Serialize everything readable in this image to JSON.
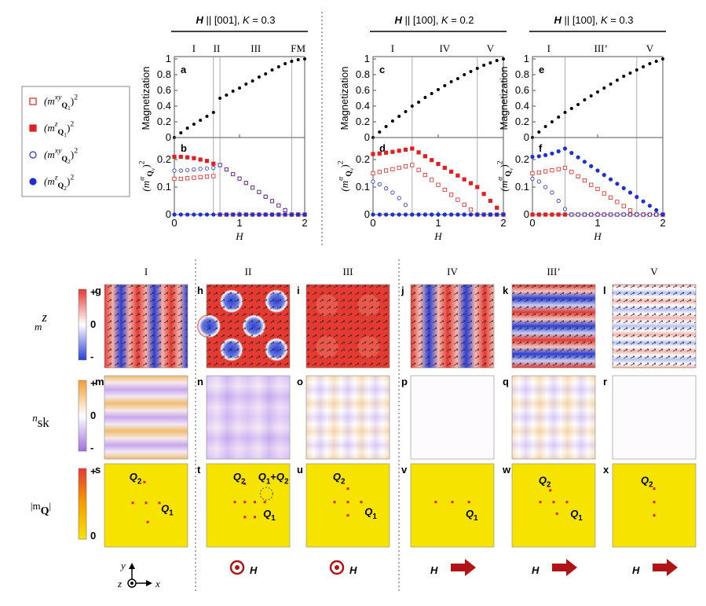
{
  "chart_data": [
    {
      "type": "scatter",
      "label": "a",
      "title": [
        {
          "t": "H",
          "i": true,
          "b": true
        },
        {
          "t": " || [001], "
        },
        {
          "t": "K",
          "i": true
        },
        {
          "t": " = 0.3"
        }
      ],
      "phases": [
        "I",
        "II",
        "III",
        "FM"
      ],
      "phase_bounds": [
        0.6,
        0.7,
        1.8
      ],
      "ylabel": [
        {
          "t": "Magnetization"
        }
      ],
      "x": [
        0,
        0.1,
        0.2,
        0.3,
        0.4,
        0.5,
        0.6,
        0.7,
        0.8,
        0.9,
        1,
        1.1,
        1.2,
        1.3,
        1.4,
        1.5,
        1.6,
        1.7,
        1.8,
        1.9,
        2
      ],
      "series": [
        {
          "color": "#000000",
          "marker": "circle",
          "values": [
            0,
            0.06,
            0.12,
            0.17,
            0.22,
            0.27,
            0.32,
            0.5,
            0.54,
            0.59,
            0.63,
            0.68,
            0.72,
            0.77,
            0.81,
            0.86,
            0.9,
            0.94,
            0.97,
            0.99,
            1
          ]
        }
      ],
      "xlim": [
        0,
        2
      ],
      "xticks": [
        0,
        1,
        2
      ],
      "ylim": [
        0,
        1
      ],
      "yticks": [
        0,
        0.2,
        0.4,
        0.6,
        0.8,
        1
      ]
    },
    {
      "type": "scatter",
      "label": "b",
      "phase_bounds": [
        0.6,
        0.7,
        1.8
      ],
      "ylabel": [
        {
          "t": "(m",
          "i": true
        },
        {
          "t": "α",
          "s": "sup",
          "i": true
        },
        {
          "t": "Q",
          "s": "sub",
          "b": true
        },
        {
          "t": "ν",
          "s": "sub2",
          "i": true
        },
        {
          "t": ")"
        },
        {
          "t": "2",
          "s": "sup"
        }
      ],
      "xlabel": [
        {
          "t": "H",
          "i": true
        }
      ],
      "x": [
        0,
        0.1,
        0.2,
        0.3,
        0.4,
        0.5,
        0.6,
        0.7,
        0.8,
        0.9,
        1,
        1.1,
        1.2,
        1.3,
        1.4,
        1.5,
        1.6,
        1.7,
        1.8,
        1.9,
        2
      ],
      "series": [
        {
          "color": "#e02020",
          "marker": "open-square",
          "values": [
            0.13,
            0.13,
            0.132,
            0.134,
            0.136,
            0.138,
            0.14,
            0.18,
            0.164,
            0.147,
            0.131,
            0.115,
            0.098,
            0.082,
            0.065,
            0.049,
            0.033,
            0.016,
            0,
            0,
            0
          ]
        },
        {
          "color": "#e02020",
          "marker": "square",
          "values": [
            0.21,
            0.21,
            0.208,
            0.205,
            0.2,
            0.195,
            0.185,
            0,
            0,
            0,
            0,
            0,
            0,
            0,
            0,
            0,
            0,
            0,
            0,
            0,
            0
          ]
        },
        {
          "color": "#2030d0",
          "marker": "open-circle",
          "values": [
            0.16,
            0.16,
            0.162,
            0.164,
            0.166,
            0.168,
            0.17,
            0.18,
            0.164,
            0.147,
            0.131,
            0.115,
            0.098,
            0.082,
            0.065,
            0.049,
            0.033,
            0.016,
            0,
            0,
            0
          ]
        },
        {
          "color": "#2030d0",
          "marker": "circle",
          "values": [
            0,
            0,
            0,
            0,
            0,
            0,
            0,
            0,
            0,
            0,
            0,
            0,
            0,
            0,
            0,
            0,
            0,
            0,
            0,
            0,
            0
          ]
        }
      ],
      "xlim": [
        0,
        2
      ],
      "xticks": [
        0,
        1,
        2
      ],
      "ylim": [
        0,
        0.28
      ],
      "yticks": [
        0,
        0.1,
        0.2
      ]
    },
    {
      "type": "scatter",
      "label": "c",
      "title": [
        {
          "t": "H",
          "i": true,
          "b": true
        },
        {
          "t": " || [100], "
        },
        {
          "t": "K",
          "i": true
        },
        {
          "t": " = 0.2"
        }
      ],
      "phases": [
        "I",
        "IV",
        "V"
      ],
      "phase_bounds": [
        0.6,
        1.6
      ],
      "ylabel": [
        {
          "t": "Magnetization"
        }
      ],
      "x": [
        0,
        0.1,
        0.2,
        0.3,
        0.4,
        0.5,
        0.6,
        0.7,
        0.8,
        0.9,
        1,
        1.1,
        1.2,
        1.3,
        1.4,
        1.5,
        1.6,
        1.7,
        1.8,
        1.9,
        2
      ],
      "series": [
        {
          "color": "#000000",
          "marker": "circle",
          "values": [
            0,
            0.07,
            0.14,
            0.21,
            0.27,
            0.33,
            0.4,
            0.45,
            0.51,
            0.56,
            0.61,
            0.66,
            0.71,
            0.75,
            0.8,
            0.84,
            0.88,
            0.92,
            0.95,
            0.98,
            1
          ]
        }
      ],
      "xlim": [
        0,
        2
      ],
      "xticks": [
        0,
        1,
        2
      ],
      "ylim": [
        0,
        1
      ],
      "yticks": [
        0,
        0.2,
        0.4,
        0.6,
        0.8,
        1
      ]
    },
    {
      "type": "scatter",
      "label": "d",
      "phase_bounds": [
        0.6,
        1.6
      ],
      "ylabel": [
        {
          "t": "(m",
          "i": true
        },
        {
          "t": "α",
          "s": "sup",
          "i": true
        },
        {
          "t": "Q",
          "s": "sub",
          "b": true
        },
        {
          "t": "ν",
          "s": "sub2",
          "i": true
        },
        {
          "t": ")"
        },
        {
          "t": "2",
          "s": "sup"
        }
      ],
      "xlabel": [
        {
          "t": "H",
          "i": true
        }
      ],
      "x": [
        0,
        0.1,
        0.2,
        0.3,
        0.4,
        0.5,
        0.6,
        0.7,
        0.8,
        0.9,
        1,
        1.1,
        1.2,
        1.3,
        1.4,
        1.5,
        1.6,
        1.7,
        1.8,
        1.9,
        2
      ],
      "series": [
        {
          "color": "#e02020",
          "marker": "open-square",
          "values": [
            0.15,
            0.155,
            0.16,
            0.165,
            0.17,
            0.175,
            0.18,
            0.162,
            0.144,
            0.126,
            0.108,
            0.09,
            0.072,
            0.054,
            0.036,
            0.018,
            0,
            0,
            0,
            0,
            0
          ]
        },
        {
          "color": "#e02020",
          "marker": "square",
          "values": [
            0.22,
            0.222,
            0.225,
            0.228,
            0.232,
            0.236,
            0.24,
            0.226,
            0.212,
            0.198,
            0.184,
            0.17,
            0.156,
            0.142,
            0.128,
            0.114,
            0.1,
            0.075,
            0.05,
            0.025,
            0
          ]
        },
        {
          "color": "#2030d0",
          "marker": "open-circle",
          "values": [
            0.12,
            0.11,
            0.095,
            0.08,
            0.06,
            0.035,
            0,
            0,
            0,
            0,
            0,
            0,
            0,
            0,
            0,
            0,
            0,
            0,
            0,
            0,
            0
          ]
        },
        {
          "color": "#2030d0",
          "marker": "circle",
          "values": [
            0,
            0,
            0,
            0,
            0,
            0,
            0,
            0,
            0,
            0,
            0,
            0,
            0,
            0,
            0,
            0,
            0,
            0,
            0,
            0,
            0
          ]
        }
      ],
      "xlim": [
        0,
        2
      ],
      "xticks": [
        0,
        1,
        2
      ],
      "ylim": [
        0,
        0.28
      ],
      "yticks": [
        0,
        0.1,
        0.2
      ]
    },
    {
      "type": "scatter",
      "label": "e",
      "title": [
        {
          "t": "H",
          "i": true,
          "b": true
        },
        {
          "t": " || [100], "
        },
        {
          "t": "K",
          "i": true
        },
        {
          "t": " = 0.3"
        }
      ],
      "phases": [
        "I",
        "III’",
        "V"
      ],
      "phase_bounds": [
        0.5,
        1.6
      ],
      "ylabel": [
        {
          "t": "Magnetization"
        }
      ],
      "x": [
        0,
        0.1,
        0.2,
        0.3,
        0.4,
        0.5,
        0.6,
        0.7,
        0.8,
        0.9,
        1,
        1.1,
        1.2,
        1.3,
        1.4,
        1.5,
        1.6,
        1.7,
        1.8,
        1.9,
        2
      ],
      "series": [
        {
          "color": "#000000",
          "marker": "circle",
          "values": [
            0,
            0.07,
            0.14,
            0.2,
            0.26,
            0.32,
            0.37,
            0.42,
            0.48,
            0.53,
            0.58,
            0.63,
            0.68,
            0.73,
            0.78,
            0.82,
            0.86,
            0.9,
            0.94,
            0.97,
            1
          ]
        }
      ],
      "xlim": [
        0,
        2
      ],
      "xticks": [
        0,
        1,
        2
      ],
      "ylim": [
        0,
        1
      ],
      "yticks": [
        0,
        0.2,
        0.4,
        0.6,
        0.8,
        1
      ]
    },
    {
      "type": "scatter",
      "label": "f",
      "phase_bounds": [
        0.5,
        1.6
      ],
      "ylabel": [
        {
          "t": "(m",
          "i": true
        },
        {
          "t": "α",
          "s": "sup",
          "i": true
        },
        {
          "t": "Q",
          "s": "sub",
          "b": true
        },
        {
          "t": "ν",
          "s": "sub2",
          "i": true
        },
        {
          "t": ")"
        },
        {
          "t": "2",
          "s": "sup"
        }
      ],
      "xlabel": [
        {
          "t": "H",
          "i": true
        }
      ],
      "x": [
        0,
        0.1,
        0.2,
        0.3,
        0.4,
        0.5,
        0.6,
        0.7,
        0.8,
        0.9,
        1,
        1.1,
        1.2,
        1.3,
        1.4,
        1.5,
        1.6,
        1.7,
        1.8,
        1.9,
        2
      ],
      "series": [
        {
          "color": "#e02020",
          "marker": "open-square",
          "values": [
            0.15,
            0.153,
            0.157,
            0.161,
            0.165,
            0.17,
            0.155,
            0.139,
            0.124,
            0.108,
            0.093,
            0.077,
            0.062,
            0.046,
            0.031,
            0.015,
            0,
            0,
            0,
            0,
            0
          ]
        },
        {
          "color": "#e02020",
          "marker": "square",
          "values": [
            0,
            0,
            0,
            0,
            0,
            0,
            0,
            0,
            0,
            0,
            0,
            0,
            0,
            0,
            0,
            0,
            0,
            0,
            0,
            0,
            0
          ]
        },
        {
          "color": "#2030d0",
          "marker": "open-circle",
          "values": [
            0.13,
            0.12,
            0.1,
            0.08,
            0.05,
            0.02,
            0,
            0,
            0,
            0,
            0,
            0,
            0,
            0,
            0,
            0,
            0,
            0,
            0,
            0,
            0
          ]
        },
        {
          "color": "#2030d0",
          "marker": "circle",
          "values": [
            0.21,
            0.212,
            0.216,
            0.222,
            0.23,
            0.24,
            0.224,
            0.208,
            0.192,
            0.176,
            0.16,
            0.144,
            0.128,
            0.112,
            0.096,
            0.08,
            0.064,
            0.048,
            0.032,
            0.016,
            0
          ]
        }
      ],
      "xlim": [
        0,
        2
      ],
      "xticks": [
        0,
        1,
        2
      ],
      "ylim": [
        0,
        0.28
      ],
      "yticks": [
        0,
        0.1,
        0.2
      ]
    }
  ],
  "legend": [
    {
      "color": "#e02020",
      "marker": "open-square",
      "text": [
        {
          "t": "(m",
          "i": true
        },
        {
          "t": "xy",
          "s": "sup",
          "i": true
        },
        {
          "t": "Q",
          "s": "sub",
          "b": true
        },
        {
          "t": "1",
          "s": "sub2"
        },
        {
          "t": ")"
        },
        {
          "t": "2",
          "s": "sup"
        }
      ]
    },
    {
      "color": "#e02020",
      "marker": "square",
      "text": [
        {
          "t": "(m",
          "i": true
        },
        {
          "t": "z",
          "s": "sup",
          "i": true
        },
        {
          "t": "Q",
          "s": "sub",
          "b": true
        },
        {
          "t": "1",
          "s": "sub2"
        },
        {
          "t": ")"
        },
        {
          "t": "2",
          "s": "sup"
        }
      ]
    },
    {
      "color": "#2030d0",
      "marker": "open-circle",
      "text": [
        {
          "t": "(m",
          "i": true
        },
        {
          "t": "xy",
          "s": "sup",
          "i": true
        },
        {
          "t": "Q",
          "s": "sub",
          "b": true
        },
        {
          "t": "2",
          "s": "sub2"
        },
        {
          "t": ")"
        },
        {
          "t": "2",
          "s": "sup"
        }
      ]
    },
    {
      "color": "#2030d0",
      "marker": "circle",
      "text": [
        {
          "t": "(m",
          "i": true
        },
        {
          "t": "z",
          "s": "sup",
          "i": true
        },
        {
          "t": "Q",
          "s": "sub",
          "b": true
        },
        {
          "t": "2",
          "s": "sub2"
        },
        {
          "t": ")"
        },
        {
          "t": "2",
          "s": "sup"
        }
      ]
    }
  ],
  "maps": {
    "columns": [
      "I",
      "II",
      "III",
      "IV",
      "III’",
      "V"
    ],
    "rows": [
      {
        "label": [
          {
            "t": "m",
            "i": true
          },
          {
            "t": "z",
            "s": "sup",
            "i": true
          }
        ],
        "bar": [
          "+",
          "0",
          "-"
        ],
        "letters": [
          "g",
          "h",
          "i",
          "j",
          "k",
          "l"
        ]
      },
      {
        "label": [
          {
            "t": "n",
            "i": true
          },
          {
            "t": "sk",
            "s": "sub"
          }
        ],
        "bar": [
          "+",
          "0",
          "-"
        ],
        "letters": [
          "m",
          "n",
          "o",
          "p",
          "q",
          "r"
        ]
      },
      {
        "label": [
          {
            "t": "|m"
          },
          {
            "t": "Q",
            "s": "sub",
            "b": true
          },
          {
            "t": "|"
          }
        ],
        "bar": [
          "+",
          "0"
        ],
        "letters": [
          "s",
          "t",
          "u",
          "v",
          "w",
          "x"
        ]
      }
    ],
    "q_labels": [
      [
        [
          {
            "t": "Q",
            "i": true,
            "b": true
          },
          {
            "t": "2",
            "s": "sub",
            "b": true
          }
        ],
        [
          {
            "t": "Q",
            "i": true,
            "b": true
          },
          {
            "t": "1",
            "s": "sub",
            "b": true
          }
        ]
      ],
      [
        [
          {
            "t": "Q",
            "i": true,
            "b": true
          },
          {
            "t": "2",
            "s": "sub",
            "b": true
          }
        ],
        [
          {
            "t": "Q",
            "i": true,
            "b": true
          },
          {
            "t": "1",
            "s": "sub",
            "b": true
          },
          {
            "t": "+",
            "b": true
          },
          {
            "t": "Q",
            "i": true,
            "b": true
          },
          {
            "t": "2",
            "s": "sub",
            "b": true
          }
        ],
        [
          {
            "t": "Q",
            "i": true,
            "b": true
          },
          {
            "t": "1",
            "s": "sub",
            "b": true
          }
        ]
      ],
      [
        [
          {
            "t": "Q",
            "i": true,
            "b": true
          },
          {
            "t": "2",
            "s": "sub",
            "b": true
          }
        ],
        [
          {
            "t": "Q",
            "i": true,
            "b": true
          },
          {
            "t": "1",
            "s": "sub",
            "b": true
          }
        ]
      ],
      [
        [
          {
            "t": "Q",
            "i": true,
            "b": true
          },
          {
            "t": "1",
            "s": "sub",
            "b": true
          }
        ]
      ],
      [
        [
          {
            "t": "Q",
            "i": true,
            "b": true
          },
          {
            "t": "2",
            "s": "sub",
            "b": true
          }
        ],
        [
          {
            "t": "Q",
            "i": true,
            "b": true
          },
          {
            "t": "1",
            "s": "sub",
            "b": true
          }
        ]
      ],
      [
        [
          {
            "t": "Q",
            "i": true,
            "b": true
          },
          {
            "t": "2",
            "s": "sub",
            "b": true
          }
        ]
      ]
    ],
    "field_labels": [
      "H",
      "H",
      "H",
      "H",
      "H"
    ],
    "axes": [
      "y",
      "z",
      "x"
    ]
  }
}
